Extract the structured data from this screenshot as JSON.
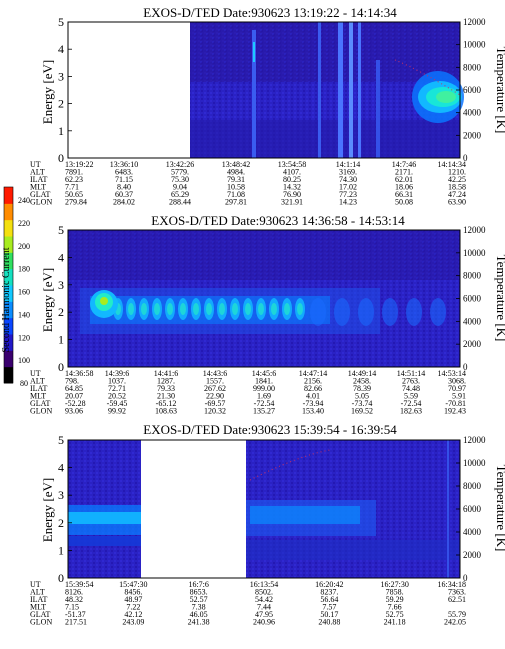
{
  "colorbar": {
    "title": "Second Harmonic Current",
    "ticks": [
      "240",
      "220",
      "200",
      "180",
      "160",
      "140",
      "120",
      "100",
      "80"
    ],
    "colors": [
      "#000000",
      "#3a006e",
      "#2218c8",
      "#0a46ff",
      "#0a8cff",
      "#12c8ff",
      "#14e0c0",
      "#30e060",
      "#a8ec20",
      "#f4e010",
      "#ff8c00",
      "#ff1a00"
    ]
  },
  "panels": [
    {
      "title": "EXOS-D/TED  Date:930623  13:19:22 - 14:14:34",
      "ylabel": "Energy [eV]",
      "y2label": "Temperature [K]",
      "yticks": [
        "0",
        "1",
        "2",
        "3",
        "4",
        "5"
      ],
      "y2ticks": [
        "0",
        "2000",
        "4000",
        "6000",
        "8000",
        "10000",
        "12000"
      ],
      "orbit": {
        "labels": [
          "UT",
          "ALT",
          "ILAT",
          "MLT",
          "GLAT",
          "GLON"
        ],
        "columns": [
          [
            "13:19:22",
            "7891.",
            "62.23",
            "7.71",
            "50.65",
            "279.84"
          ],
          [
            "13:36:10",
            "6483.",
            "71.15",
            "8.40",
            "60.37",
            "284.02"
          ],
          [
            "13:42:26",
            "5779.",
            "75.30",
            "9.04",
            "65.29",
            "288.44"
          ],
          [
            "13:48:42",
            "4984.",
            "79.31",
            "10.58",
            "71.08",
            "297.81"
          ],
          [
            "13:54:58",
            "4107.",
            "80.25",
            "14.32",
            "76.90",
            "321.91"
          ],
          [
            "14:1:14",
            "3169.",
            "74.30",
            "17.02",
            "77.23",
            "14.23"
          ],
          [
            "14:7:46",
            "2171.",
            "62.01",
            "18.06",
            "66.31",
            "50.08"
          ],
          [
            "14:14:34",
            "1210.",
            "42.25",
            "18.58",
            "47.24",
            "63.90"
          ]
        ]
      }
    },
    {
      "title": "EXOS-D/TED  Date:930623  14:36:58 - 14:53:14",
      "ylabel": "Energy [eV]",
      "y2label": "Temperature [K]",
      "yticks": [
        "0",
        "1",
        "2",
        "3",
        "4",
        "5"
      ],
      "y2ticks": [
        "0",
        "2000",
        "4000",
        "6000",
        "8000",
        "10000",
        "12000"
      ],
      "orbit": {
        "labels": [
          "UT",
          "ALT",
          "ILAT",
          "MLT",
          "GLAT",
          "GLON"
        ],
        "columns": [
          [
            "14:36:58",
            "798.",
            "64.85",
            "20.07",
            "-52.28",
            "93.06"
          ],
          [
            "14:39:6",
            "1037.",
            "72.71",
            "20.52",
            "-59.45",
            "99.92"
          ],
          [
            "14:41:6",
            "1287.",
            "79.33",
            "21.30",
            "-65.12",
            "108.63"
          ],
          [
            "14:43:6",
            "1557.",
            "267.62",
            "22.90",
            "-69.57",
            "120.32"
          ],
          [
            "14:45:6",
            "1841.",
            "999.00",
            "1.69",
            "-72.54",
            "135.27"
          ],
          [
            "14:47:14",
            "2156.",
            "82.66",
            "4.01",
            "-73.94",
            "153.40"
          ],
          [
            "14:49:14",
            "2458.",
            "78.39",
            "5.05",
            "-73.74",
            "169.52"
          ],
          [
            "14:51:14",
            "2763.",
            "74.48",
            "5.59",
            "-72.54",
            "182.63"
          ],
          [
            "14:53:14",
            "3068.",
            "70.97",
            "5.91",
            "-70.81",
            "192.43"
          ]
        ]
      }
    },
    {
      "title": "EXOS-D/TED  Date:930623  15:39:54 - 16:39:54",
      "ylabel": "Energy [eV]",
      "y2label": "Temperature [K]",
      "yticks": [
        "0",
        "1",
        "2",
        "3",
        "4",
        "5"
      ],
      "y2ticks": [
        "0",
        "2000",
        "4000",
        "6000",
        "8000",
        "10000",
        "12000"
      ],
      "orbit": {
        "labels": [
          "UT",
          "ALT",
          "ILAT",
          "MLT",
          "GLAT",
          "GLON"
        ],
        "columns": [
          [
            "15:39:54",
            "8126.",
            "48.32",
            "7.15",
            "-51.37",
            "217.51"
          ],
          [
            "15:47:30",
            "8456.",
            "48.97",
            "7.22",
            "42.12",
            "243.09"
          ],
          [
            "16:7:6",
            "8653.",
            "52.57",
            "7.38",
            "46.05",
            "241.38"
          ],
          [
            "16:13:54",
            "8502.",
            "54.42",
            "7.44",
            "47.95",
            "240.96"
          ],
          [
            "16:20:42",
            "8237.",
            "56.64",
            "7.57",
            "50.17",
            "240.88"
          ],
          [
            "16:27:30",
            "7858.",
            "59.29",
            "7.66",
            "52.75",
            "241.18"
          ],
          [
            "16:34:18",
            "7363.",
            "62.51",
            "",
            "55.79",
            "242.05"
          ]
        ]
      }
    }
  ],
  "chart_data": [
    {
      "type": "heatmap",
      "title": "EXOS-D/TED  Date:930623  13:19:22 - 14:14:34",
      "ylabel": "Energy [eV]",
      "y2label": "Temperature [K]",
      "ylim": [
        0,
        5
      ],
      "y2lim": [
        0,
        12000
      ],
      "xlim": [
        "13:19:22",
        "14:14:34"
      ],
      "data_gap": [
        "13:19:22",
        "13:36:10"
      ],
      "features": [
        {
          "time": "13:42:26",
          "energy_range": [
            0,
            5
          ],
          "level": "high"
        },
        {
          "time": "13:51:00",
          "energy_range": [
            0,
            5
          ],
          "level": "high"
        },
        {
          "time": "13:54:00",
          "energy_range": [
            0,
            5
          ],
          "level": "high"
        },
        {
          "time": "14:10:00",
          "energy_range": [
            1.8,
            3.0
          ],
          "level": "very high"
        }
      ],
      "colorbar": {
        "label": "Second Harmonic Current",
        "range": [
          80,
          240
        ]
      }
    },
    {
      "type": "heatmap",
      "title": "EXOS-D/TED  Date:930623  14:36:58 - 14:53:14",
      "ylabel": "Energy [eV]",
      "y2label": "Temperature [K]",
      "ylim": [
        0,
        5
      ],
      "y2lim": [
        0,
        12000
      ],
      "xlim": [
        "14:36:58",
        "14:53:14"
      ],
      "features": [
        {
          "time_range": [
            "14:37:30",
            "14:39:00"
          ],
          "energy_range": [
            1.6,
            2.6
          ],
          "level": "very high"
        },
        {
          "time_range": [
            "14:39:00",
            "14:44:00"
          ],
          "energy_range": [
            1.4,
            2.5
          ],
          "level": "high"
        }
      ],
      "colorbar": {
        "label": "Second Harmonic Current",
        "range": [
          80,
          240
        ]
      }
    },
    {
      "type": "heatmap",
      "title": "EXOS-D/TED  Date:930623  15:39:54 - 16:39:54",
      "ylabel": "Energy [eV]",
      "y2label": "Temperature [K]",
      "ylim": [
        0,
        5
      ],
      "y2lim": [
        0,
        12000
      ],
      "xlim": [
        "15:39:54",
        "16:39:54"
      ],
      "data_gap": [
        "15:47:30",
        "16:7:6"
      ],
      "features": [
        {
          "time_range": [
            "15:39:54",
            "15:47:30"
          ],
          "energy_range": [
            1.8,
            2.4
          ],
          "level": "high"
        },
        {
          "time_range": [
            "16:7:6",
            "16:20:42"
          ],
          "energy_range": [
            1.6,
            2.4
          ],
          "level": "medium"
        }
      ],
      "colorbar": {
        "label": "Second Harmonic Current",
        "range": [
          80,
          240
        ]
      }
    }
  ]
}
